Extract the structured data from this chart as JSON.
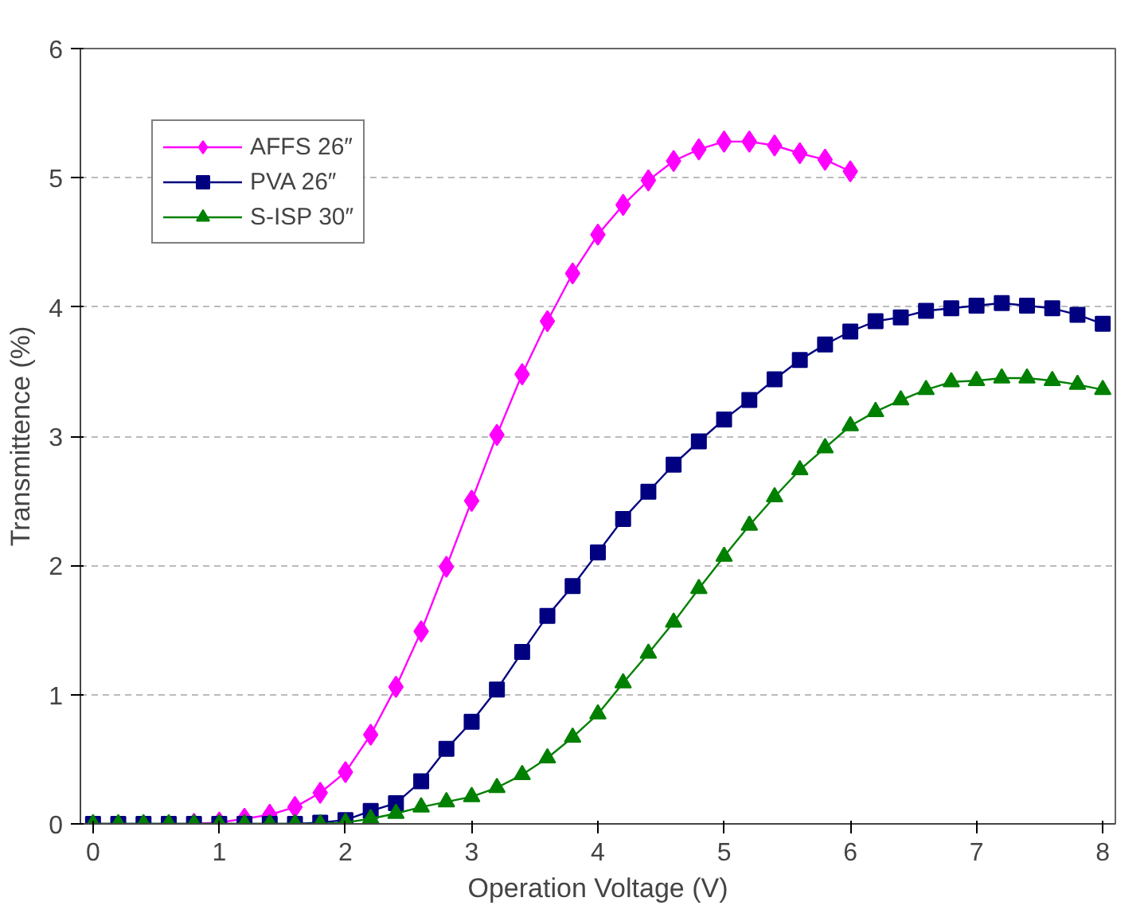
{
  "chart_data": {
    "type": "line",
    "xlabel": "Operation Voltage (V)",
    "ylabel": "Transmittence (%)",
    "xlim": [
      -0.1,
      8.1
    ],
    "ylim": [
      0,
      6
    ],
    "xticks": [
      0,
      1,
      2,
      3,
      4,
      5,
      6,
      7,
      8
    ],
    "yticks": [
      0,
      1,
      2,
      3,
      4,
      5,
      6
    ],
    "grid": "y",
    "legend": "top left",
    "series": [
      {
        "name": "AFFS 26″",
        "color": "#ff00ff",
        "marker": "diamond",
        "x": [
          0.8,
          1.0,
          1.2,
          1.4,
          1.6,
          1.8,
          2.0,
          2.2,
          2.4,
          2.6,
          2.8,
          3.0,
          3.2,
          3.4,
          3.6,
          3.8,
          4.0,
          4.2,
          4.4,
          4.6,
          4.8,
          5.0,
          5.2,
          5.4,
          5.6,
          5.8,
          6.0
        ],
        "values": [
          0,
          0.01,
          0.04,
          0.07,
          0.13,
          0.24,
          0.4,
          0.69,
          1.06,
          1.49,
          1.99,
          2.5,
          3.01,
          3.48,
          3.89,
          4.26,
          4.56,
          4.79,
          4.98,
          5.13,
          5.22,
          5.28,
          5.28,
          5.25,
          5.19,
          5.14,
          5.05
        ]
      },
      {
        "name": "PVA 26″",
        "color": "#000080",
        "marker": "square",
        "x": [
          0,
          0.2,
          0.4,
          0.6,
          0.8,
          1.0,
          1.2,
          1.4,
          1.6,
          1.8,
          2.0,
          2.2,
          2.4,
          2.6,
          2.8,
          3.0,
          3.2,
          3.4,
          3.6,
          3.8,
          4.0,
          4.2,
          4.4,
          4.6,
          4.8,
          5.0,
          5.2,
          5.4,
          5.6,
          5.8,
          6.0,
          6.2,
          6.4,
          6.6,
          6.8,
          7.0,
          7.2,
          7.4,
          7.6,
          7.8,
          8.0
        ],
        "values": [
          0,
          0,
          0,
          0,
          0,
          0,
          0,
          0,
          0,
          0.01,
          0.03,
          0.1,
          0.16,
          0.33,
          0.58,
          0.79,
          1.04,
          1.33,
          1.61,
          1.84,
          2.1,
          2.36,
          2.57,
          2.78,
          2.96,
          3.13,
          3.28,
          3.44,
          3.59,
          3.71,
          3.81,
          3.89,
          3.92,
          3.97,
          3.99,
          4.01,
          4.03,
          4.01,
          3.99,
          3.94,
          3.87
        ]
      },
      {
        "name": "S-ISP 30″",
        "color": "#008000",
        "marker": "triangle",
        "x": [
          0,
          0.2,
          0.4,
          0.6,
          0.8,
          1.0,
          1.2,
          1.4,
          1.6,
          1.8,
          2.0,
          2.2,
          2.4,
          2.6,
          2.8,
          3.0,
          3.2,
          3.4,
          3.6,
          3.8,
          4.0,
          4.2,
          4.4,
          4.6,
          4.8,
          5.0,
          5.2,
          5.4,
          5.6,
          5.8,
          6.0,
          6.2,
          6.4,
          6.6,
          6.8,
          7.0,
          7.2,
          7.4,
          7.6,
          7.8,
          8.0
        ],
        "values": [
          0,
          0,
          0,
          0,
          0,
          0,
          0,
          0,
          0,
          0,
          0.01,
          0.04,
          0.08,
          0.13,
          0.17,
          0.21,
          0.28,
          0.38,
          0.51,
          0.67,
          0.85,
          1.09,
          1.32,
          1.56,
          1.82,
          2.07,
          2.31,
          2.53,
          2.74,
          2.91,
          3.08,
          3.19,
          3.28,
          3.36,
          3.42,
          3.43,
          3.45,
          3.45,
          3.43,
          3.4,
          3.36
        ]
      }
    ]
  }
}
